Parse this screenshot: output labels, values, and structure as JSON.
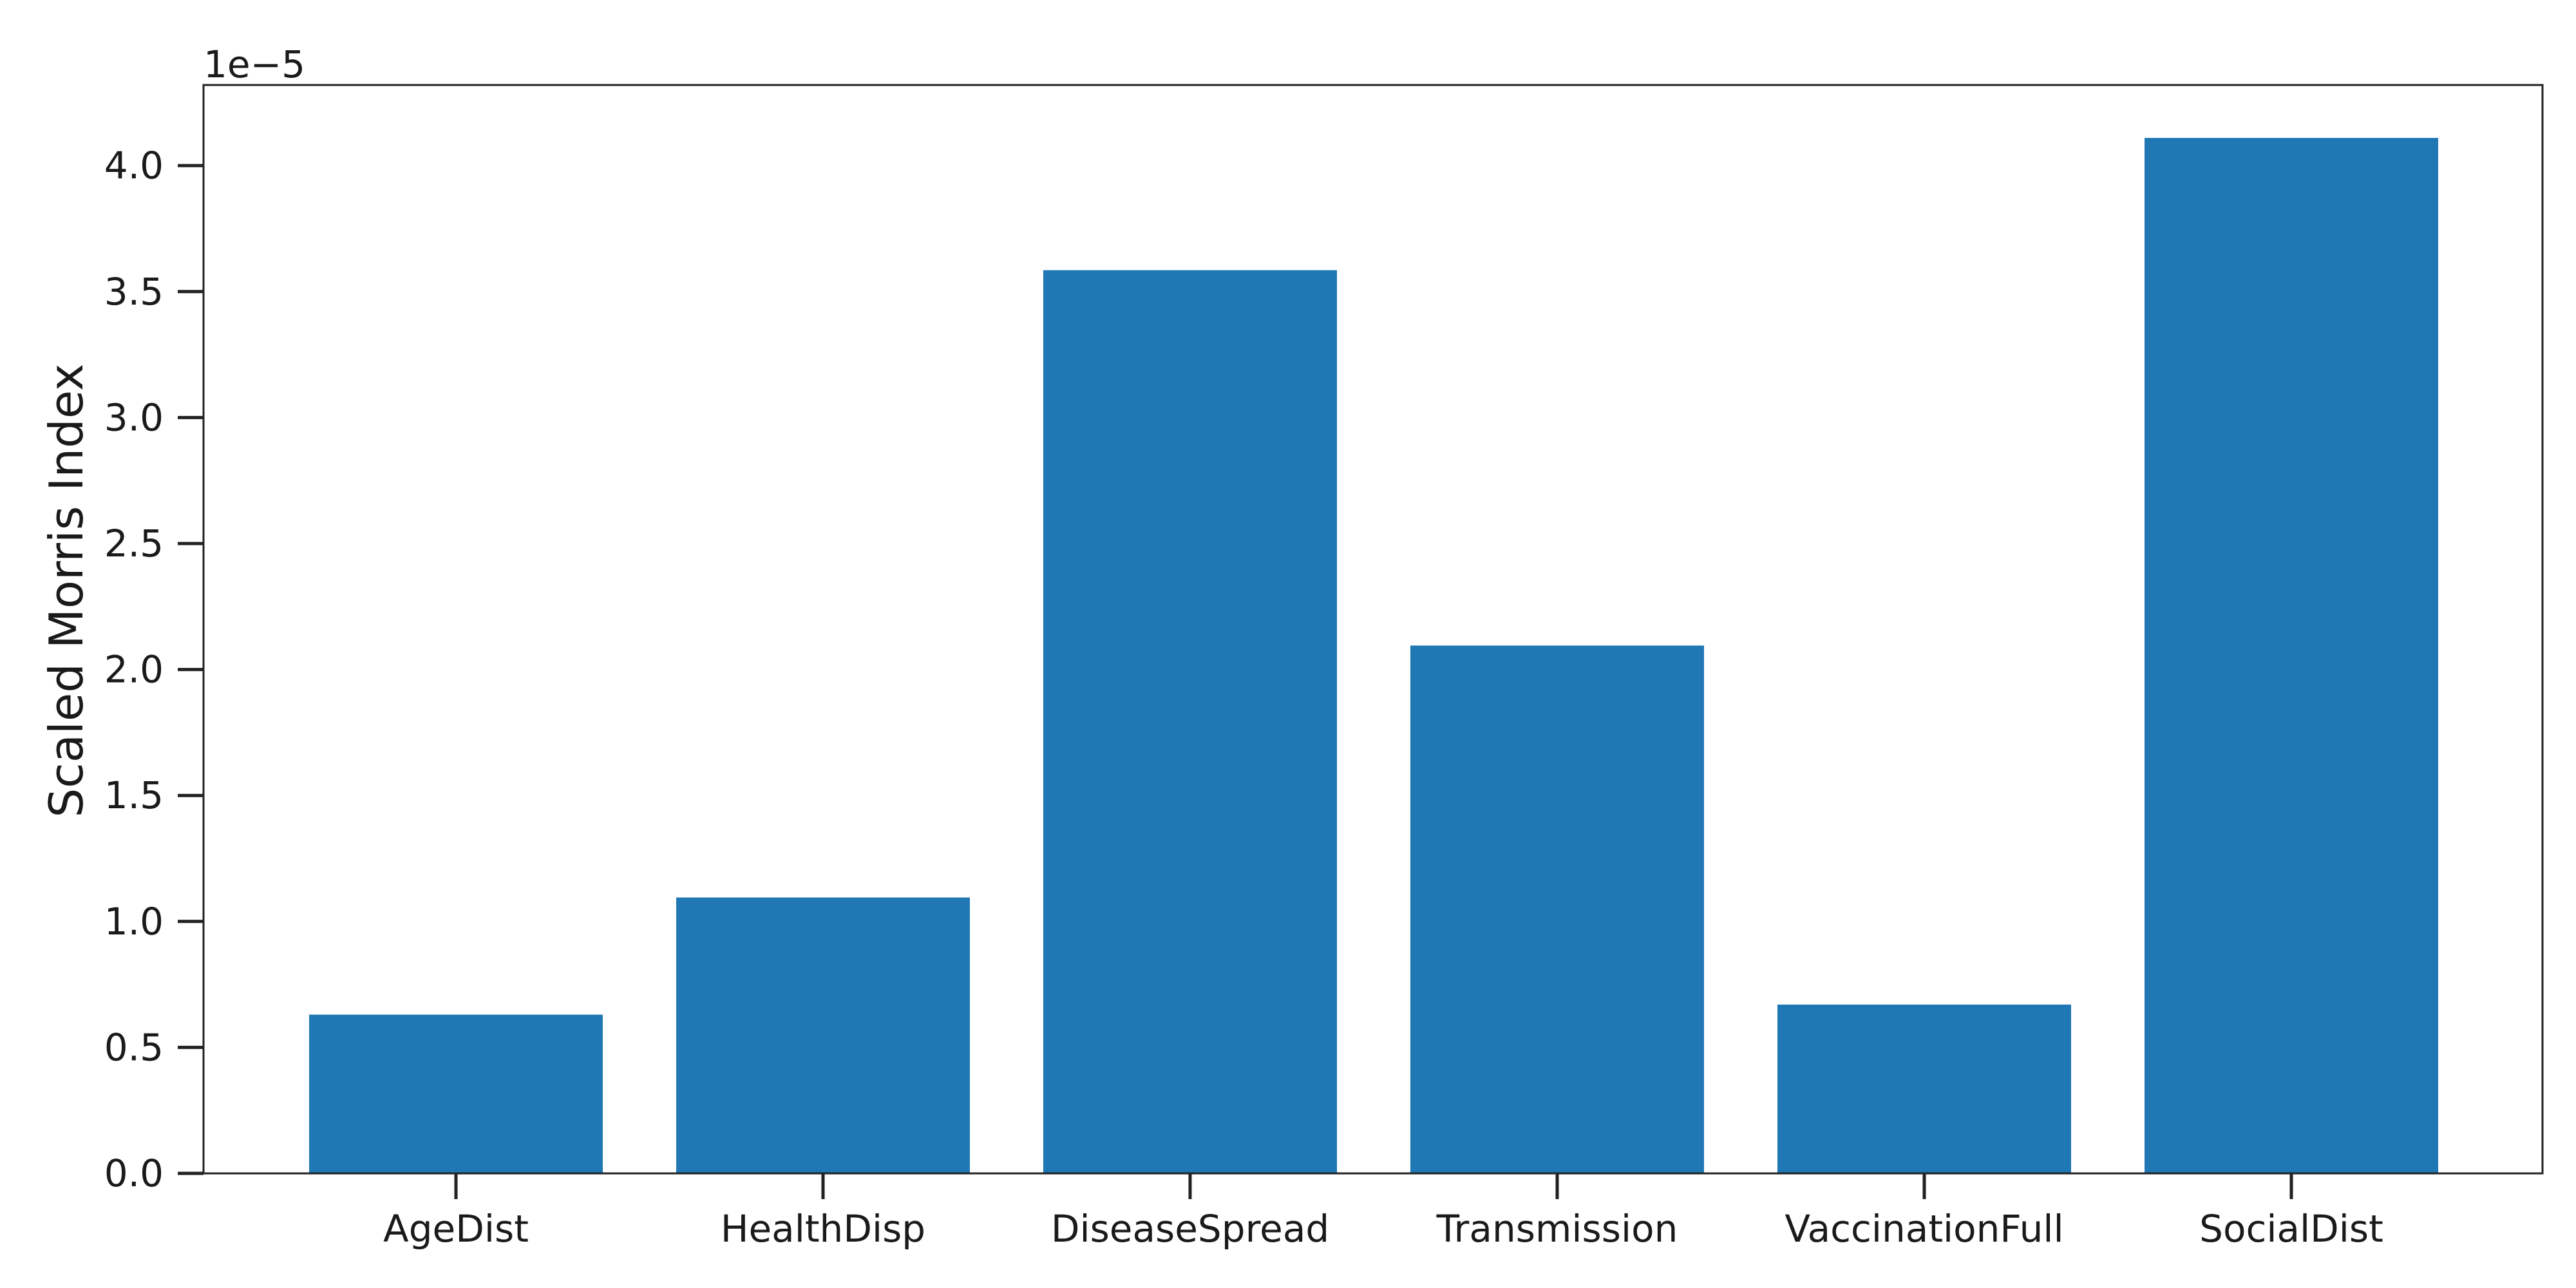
{
  "chart_data": {
    "type": "bar",
    "title": "",
    "xlabel": "",
    "ylabel": "Scaled Morris Index",
    "y_offset_label": "1e−5",
    "categories": [
      "AgeDist",
      "HealthDisp",
      "DiseaseSpread",
      "Transmission",
      "VaccinationFull",
      "SocialDist"
    ],
    "values": [
      6.3e-06,
      1.095e-05,
      3.585e-05,
      2.095e-05,
      6.7e-06,
      4.11e-05
    ],
    "ylim": [
      0,
      4.32e-05
    ],
    "yticks": [
      0,
      5e-06,
      1e-05,
      1.5e-05,
      2e-05,
      2.5e-05,
      3e-05,
      3.5e-05,
      4e-05
    ],
    "ytick_labels": [
      "0.0",
      "0.5",
      "1.0",
      "1.5",
      "2.0",
      "2.5",
      "3.0",
      "3.5",
      "4.0"
    ],
    "bar_color": "#1f77b4",
    "grid": false,
    "legend": false
  }
}
